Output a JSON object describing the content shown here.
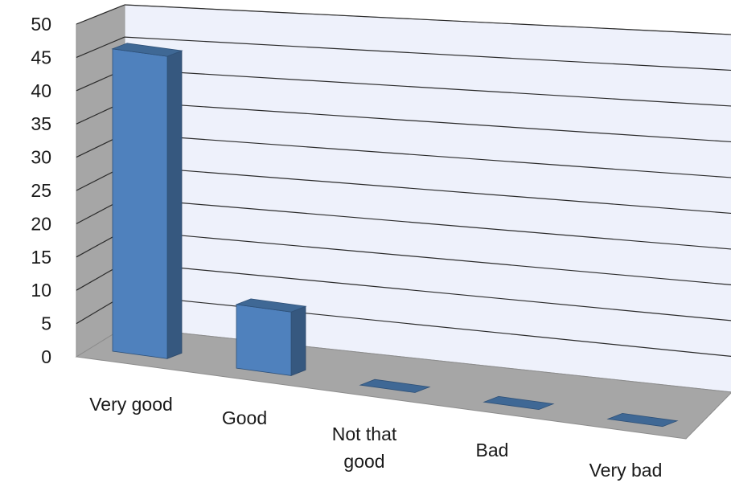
{
  "chart_data": {
    "type": "bar",
    "categories": [
      "Very good",
      "Good",
      "Not that good",
      "Bad",
      "Very bad"
    ],
    "category_label_lines": [
      [
        "Very good"
      ],
      [
        "Good"
      ],
      [
        "Not that",
        "good"
      ],
      [
        "Bad"
      ],
      [
        "Very bad"
      ]
    ],
    "values": [
      47.5,
      10,
      0,
      0,
      0
    ],
    "ylim": [
      0,
      50
    ],
    "yticks": [
      "0",
      "5",
      "10",
      "15",
      "20",
      "25",
      "30",
      "35",
      "40",
      "45",
      "50"
    ],
    "grid": true,
    "style": "3d-column",
    "colors": {
      "bar_front": "#4f81bd",
      "bar_side": "#36587f",
      "bar_top": "#3f6895",
      "wall_back": "#eef1fb",
      "wall_side": "#a6a6a6",
      "floor": "#a6a6a6",
      "grid": "#2b2b2b"
    }
  }
}
